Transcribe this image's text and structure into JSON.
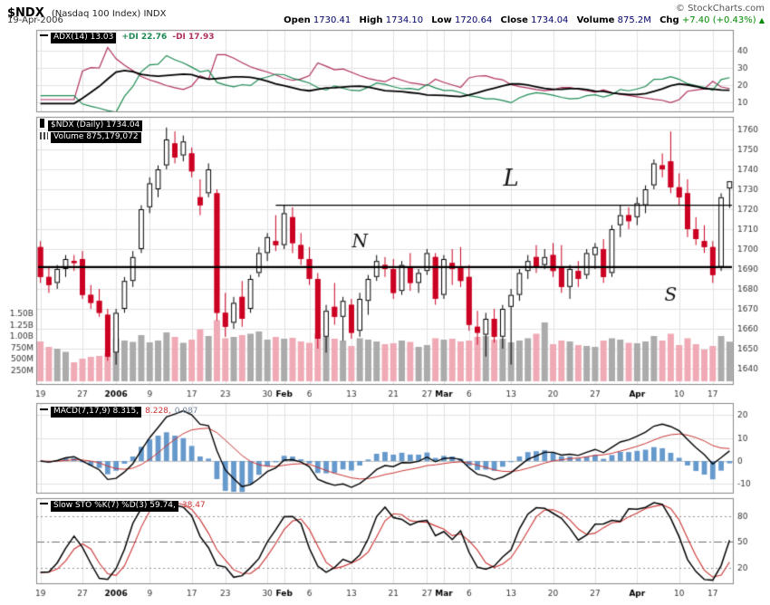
{
  "header": {
    "symbol": "$NDX",
    "symbol_desc": "(Nasdaq 100 Index) INDX",
    "copyright": "© StockCharts.com",
    "date": "19-Apr-2006",
    "quote": {
      "open_label": "Open",
      "open": "1730.41",
      "high_label": "High",
      "high": "1734.10",
      "low_label": "Low",
      "low": "1720.64",
      "close_label": "Close",
      "close": "1734.04",
      "volume_label": "Volume",
      "volume": "875.2M",
      "chg_label": "Chg",
      "chg": "+7.40 (+0.43%)",
      "chg_arrow": "▲"
    }
  },
  "panels": {
    "adx": {
      "legend_main": "ADX(14) 13.03",
      "legend_plus": "+DI 22.76",
      "legend_minus": "-DI 17.93"
    },
    "price": {
      "legend_symbol": "$NDX (Daily) 1734.04",
      "legend_volume": "Volume 875,179,072"
    },
    "macd": {
      "legend_main": "MACD(7,17,9) 8.315,",
      "legend_signal": "8.228,",
      "legend_hist": "0.087"
    },
    "sto": {
      "legend_main": "Slow STO %K(7) %D(3) 59.74,",
      "legend_d": "38.47"
    }
  },
  "colors": {
    "down_candle": "#cc0022",
    "up_fill": "#ffffff",
    "up_stroke": "#000000",
    "vol_up": "#ababab",
    "vol_down": "#f0aab6",
    "plus_di": "#1d8a52",
    "minus_di": "#b03060",
    "adx_line": "#000000",
    "macd_hist": "#6699cc",
    "macd_line": "#000000",
    "macd_signal": "#cc3333",
    "sto_k": "#000000",
    "sto_d": "#cc3333",
    "grid": "#e2e2e2",
    "grid_dark": "#c0c0c0",
    "border": "#878787",
    "trendline": "#000000",
    "tick_text": "#333333"
  },
  "chart_data": {
    "type": "candlestick",
    "title": "$NDX Daily candlesticks with volume, ADX(14), MACD(7,17,9), Slow STO %K(7) %D(3)",
    "symbol": "$NDX",
    "timeframe": "Daily",
    "price_axis": {
      "min": 1640,
      "max": 1760,
      "step": 10
    },
    "adx_axis": {
      "ticks": [
        10,
        20,
        30,
        40
      ]
    },
    "macd_axis": {
      "ticks": [
        -10,
        0,
        10,
        20
      ]
    },
    "sto_axis": {
      "ticks": [
        20,
        50,
        80
      ]
    },
    "volume_axis_labels": [
      [
        "1.50B",
        1500
      ],
      [
        "1.25B",
        1250
      ],
      [
        "1.00B",
        1000
      ],
      [
        "750M",
        750
      ],
      [
        "500M",
        500
      ],
      [
        "250M",
        250
      ]
    ],
    "x_axis_labels": [
      [
        "19",
        0,
        0
      ],
      [
        "27",
        5,
        0
      ],
      [
        "2006",
        9,
        1
      ],
      [
        "9",
        13,
        0
      ],
      [
        "17",
        18,
        0
      ],
      [
        "23",
        22,
        0
      ],
      [
        "30",
        27,
        0
      ],
      [
        "Feb",
        29,
        1
      ],
      [
        "6",
        32,
        0
      ],
      [
        "13",
        37,
        0
      ],
      [
        "21",
        42,
        0
      ],
      [
        "27",
        46,
        0
      ],
      [
        "Mar",
        48,
        1
      ],
      [
        "6",
        51,
        0
      ],
      [
        "13",
        56,
        0
      ],
      [
        "20",
        61,
        0
      ],
      [
        "27",
        66,
        0
      ],
      [
        "Apr",
        71,
        1
      ],
      [
        "10",
        76,
        0
      ],
      [
        "17",
        80,
        0
      ]
    ],
    "indicators": {
      "adx": {
        "params": "ADX(14)",
        "adx": 13.03,
        "plus_di": 22.76,
        "minus_di": 17.93
      },
      "macd": {
        "params": "MACD(7,17,9)",
        "macd": 8.315,
        "signal": 8.228,
        "hist": 0.087
      },
      "sto": {
        "params": "Slow STO %K(7) %D(3)",
        "k": 59.74,
        "d": 38.47
      }
    },
    "trendlines": [
      {
        "price": 1691,
        "from_day": 0,
        "width": 2.2
      },
      {
        "price": 1722,
        "from_day": 28,
        "width": 1.2
      }
    ],
    "annotations": [
      {
        "text": "L",
        "day": 56,
        "price": 1732,
        "size": 26
      },
      {
        "text": "N",
        "day": 38,
        "price": 1701,
        "size": 20
      },
      {
        "text": "S",
        "day": 75,
        "price": 1674,
        "size": 20
      }
    ],
    "candles": [
      [
        "19-Dec",
        1701,
        1704,
        1683,
        1686,
        880
      ],
      [
        "20-Dec",
        1686,
        1691,
        1678,
        1682,
        760
      ],
      [
        "21-Dec",
        1683,
        1692,
        1680,
        1690,
        720
      ],
      [
        "22-Dec",
        1690,
        1697,
        1686,
        1695,
        650
      ],
      [
        "23-Dec",
        1694,
        1697,
        1689,
        1693,
        420
      ],
      [
        "27-Dec",
        1695,
        1699,
        1675,
        1677,
        500
      ],
      [
        "28-Dec",
        1677,
        1682,
        1670,
        1673,
        540
      ],
      [
        "29-Dec",
        1674,
        1680,
        1666,
        1668,
        560
      ],
      [
        "30-Dec",
        1667,
        1670,
        1644,
        1646,
        620
      ],
      [
        "3-Jan",
        1648,
        1670,
        1642,
        1668,
        950
      ],
      [
        "4-Jan",
        1670,
        1686,
        1668,
        1684,
        900
      ],
      [
        "5-Jan",
        1684,
        1699,
        1681,
        1696,
        870
      ],
      [
        "6-Jan",
        1700,
        1722,
        1698,
        1720,
        1020
      ],
      [
        "9-Jan",
        1721,
        1736,
        1718,
        1733,
        860
      ],
      [
        "10-Jan",
        1730,
        1742,
        1726,
        1740,
        900
      ],
      [
        "11-Jan",
        1742,
        1761,
        1740,
        1755,
        1080
      ],
      [
        "12-Jan",
        1753,
        1759,
        1743,
        1746,
        980
      ],
      [
        "13-Jan",
        1747,
        1757,
        1744,
        1754,
        850
      ],
      [
        "17-Jan",
        1748,
        1751,
        1736,
        1739,
        920
      ],
      [
        "18-Jan",
        1726,
        1735,
        1717,
        1722,
        1150
      ],
      [
        "19-Jan",
        1728,
        1743,
        1726,
        1740,
        1000
      ],
      [
        "20-Jan",
        1728,
        1730,
        1664,
        1668,
        1350
      ],
      [
        "23-Jan",
        1668,
        1678,
        1656,
        1661,
        950
      ],
      [
        "24-Jan",
        1663,
        1676,
        1660,
        1673,
        980
      ],
      [
        "25-Jan",
        1676,
        1684,
        1661,
        1665,
        1020
      ],
      [
        "26-Jan",
        1670,
        1687,
        1668,
        1685,
        1050
      ],
      [
        "27-Jan",
        1688,
        1701,
        1686,
        1698,
        1100
      ],
      [
        "30-Jan",
        1698,
        1708,
        1694,
        1706,
        920
      ],
      [
        "31-Jan",
        1704,
        1717,
        1699,
        1702,
        980
      ],
      [
        "1-Feb",
        1702,
        1722,
        1700,
        1718,
        940
      ],
      [
        "2-Feb",
        1716,
        1721,
        1698,
        1703,
        960
      ],
      [
        "3-Feb",
        1702,
        1708,
        1692,
        1695,
        880
      ],
      [
        "6-Feb",
        1695,
        1701,
        1682,
        1685,
        850
      ],
      [
        "7-Feb",
        1685,
        1688,
        1650,
        1655,
        1050
      ],
      [
        "8-Feb",
        1656,
        1672,
        1648,
        1669,
        980
      ],
      [
        "9-Feb",
        1671,
        1683,
        1662,
        1666,
        940
      ],
      [
        "10-Feb",
        1666,
        1676,
        1654,
        1674,
        900
      ],
      [
        "13-Feb",
        1672,
        1675,
        1655,
        1658,
        780
      ],
      [
        "14-Feb",
        1659,
        1678,
        1656,
        1675,
        950
      ],
      [
        "15-Feb",
        1674,
        1687,
        1667,
        1685,
        920
      ],
      [
        "16-Feb",
        1686,
        1697,
        1684,
        1694,
        880
      ],
      [
        "17-Feb",
        1692,
        1696,
        1686,
        1690,
        820
      ],
      [
        "21-Feb",
        1690,
        1695,
        1675,
        1678,
        840
      ],
      [
        "22-Feb",
        1679,
        1694,
        1677,
        1692,
        900
      ],
      [
        "23-Feb",
        1691,
        1698,
        1679,
        1683,
        870
      ],
      [
        "24-Feb",
        1683,
        1690,
        1678,
        1688,
        760
      ],
      [
        "27-Feb",
        1689,
        1700,
        1687,
        1698,
        800
      ],
      [
        "28-Feb",
        1696,
        1698,
        1672,
        1675,
        950
      ],
      [
        "1-Mar",
        1677,
        1697,
        1675,
        1695,
        920
      ],
      [
        "2-Mar",
        1693,
        1700,
        1682,
        1690,
        940
      ],
      [
        "3-Mar",
        1691,
        1701,
        1681,
        1684,
        880
      ],
      [
        "6-Mar",
        1686,
        1692,
        1659,
        1662,
        900
      ],
      [
        "7-Mar",
        1661,
        1669,
        1652,
        1658,
        980
      ],
      [
        "8-Mar",
        1657,
        1668,
        1646,
        1665,
        1000
      ],
      [
        "9-Mar",
        1665,
        1670,
        1653,
        1656,
        920
      ],
      [
        "10-Mar",
        1656,
        1672,
        1650,
        1670,
        940
      ],
      [
        "13-Mar",
        1671,
        1680,
        1642,
        1677,
        860
      ],
      [
        "14-Mar",
        1677,
        1690,
        1674,
        1688,
        900
      ],
      [
        "15-Mar",
        1689,
        1697,
        1685,
        1694,
        950
      ],
      [
        "16-Mar",
        1696,
        1702,
        1688,
        1691,
        1050
      ],
      [
        "17-Mar",
        1692,
        1700,
        1690,
        1696,
        1300
      ],
      [
        "20-Mar",
        1697,
        1703,
        1686,
        1689,
        820
      ],
      [
        "21-Mar",
        1691,
        1702,
        1678,
        1681,
        900
      ],
      [
        "22-Mar",
        1681,
        1692,
        1675,
        1690,
        880
      ],
      [
        "23-Mar",
        1689,
        1694,
        1681,
        1685,
        800
      ],
      [
        "24-Mar",
        1687,
        1700,
        1685,
        1698,
        780
      ],
      [
        "27-Mar",
        1697,
        1703,
        1690,
        1701,
        760
      ],
      [
        "28-Mar",
        1700,
        1705,
        1683,
        1686,
        900
      ],
      [
        "29-Mar",
        1688,
        1712,
        1686,
        1710,
        950
      ],
      [
        "30-Mar",
        1712,
        1722,
        1706,
        1717,
        920
      ],
      [
        "31-Mar",
        1717,
        1721,
        1710,
        1714,
        850
      ],
      [
        "3-Apr",
        1716,
        1726,
        1712,
        1723,
        840
      ],
      [
        "4-Apr",
        1722,
        1732,
        1718,
        1730,
        880
      ],
      [
        "5-Apr",
        1732,
        1745,
        1730,
        1743,
        1000
      ],
      [
        "6-Apr",
        1742,
        1748,
        1736,
        1740,
        900
      ],
      [
        "7-Apr",
        1744,
        1759,
        1728,
        1731,
        1050
      ],
      [
        "10-Apr",
        1731,
        1738,
        1722,
        1726,
        800
      ],
      [
        "11-Apr",
        1728,
        1735,
        1706,
        1710,
        950
      ],
      [
        "12-Apr",
        1710,
        1716,
        1702,
        1705,
        820
      ],
      [
        "13-Apr",
        1704,
        1712,
        1698,
        1701,
        700
      ],
      [
        "17-Apr",
        1701,
        1704,
        1683,
        1687,
        780
      ],
      [
        "18-Apr",
        1691,
        1728,
        1689,
        1726,
        1000
      ],
      [
        "19-Apr",
        1730.41,
        1734.1,
        1720.64,
        1734.04,
        875
      ]
    ]
  }
}
